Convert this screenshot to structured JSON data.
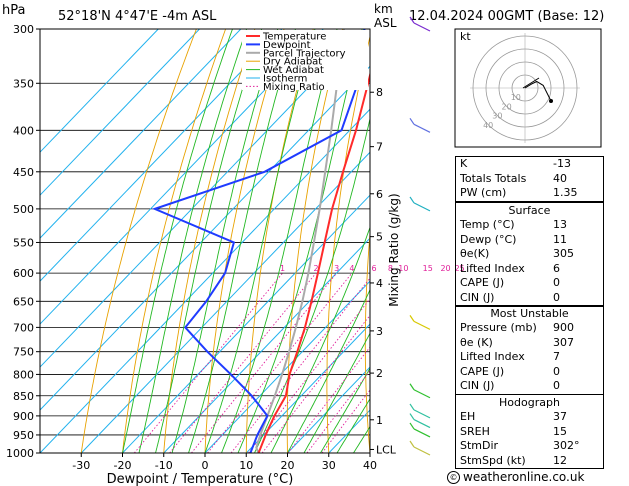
{
  "header": {
    "hpa_label": "hPa",
    "location": "52°18'N  4°47'E  -4m  ASL",
    "km_label": "km",
    "asl_label": "ASL",
    "datetime": "12.04.2024  00GMT  (Base: 12)"
  },
  "colors": {
    "temperature": "#ff2a2a",
    "dewpoint": "#1f3bff",
    "parcel": "#aaaaaa",
    "dry_adiabat": "#e8a200",
    "wet_adiabat": "#22b822",
    "isotherm": "#22b2ee",
    "mixing_ratio": "#e0209a",
    "wind": "#6070e0"
  },
  "chart_data": {
    "type": "line",
    "xlabel": "Dewpoint / Temperature (°C)",
    "ylabel": "Mixing Ratio (g/kg)",
    "xlim": [
      -40,
      40
    ],
    "ylim": [
      1000,
      300
    ],
    "y_scale": "log",
    "x_ticks": [
      "-30",
      "-20",
      "-10",
      "0",
      "10",
      "20",
      "30",
      "40"
    ],
    "x_tick_values": [
      -30,
      -20,
      -10,
      0,
      10,
      20,
      30,
      40
    ],
    "pressure_levels": [
      "300",
      "350",
      "400",
      "450",
      "500",
      "550",
      "600",
      "650",
      "700",
      "750",
      "800",
      "850",
      "900",
      "950",
      "1000"
    ],
    "pressure_values": [
      300,
      350,
      400,
      450,
      500,
      550,
      600,
      650,
      700,
      750,
      800,
      850,
      900,
      950,
      1000
    ],
    "km_ticks": [
      {
        "label": "8",
        "p": 359
      },
      {
        "label": "7",
        "p": 419
      },
      {
        "label": "6",
        "p": 479
      },
      {
        "label": "5",
        "p": 541
      },
      {
        "label": "4",
        "p": 617
      },
      {
        "label": "3",
        "p": 707
      },
      {
        "label": "2",
        "p": 797
      },
      {
        "label": "1",
        "p": 910
      },
      {
        "label": "LCL",
        "p": 990
      }
    ],
    "mixing_ratio_labels": [
      {
        "label": "1",
        "w": 1
      },
      {
        "label": "2",
        "w": 2
      },
      {
        "label": "3",
        "w": 3
      },
      {
        "label": "4",
        "w": 4
      },
      {
        "label": "6",
        "w": 6
      },
      {
        "label": "8",
        "w": 8
      },
      {
        "label": "10",
        "w": 10
      },
      {
        "label": "15",
        "w": 15
      },
      {
        "label": "20",
        "w": 20
      },
      {
        "label": "25",
        "w": 25
      }
    ],
    "legend": [
      "Temperature",
      "Dewpoint",
      "Parcel Trajectory",
      "Dry Adiabat",
      "Wet Adiabat",
      "Isotherm",
      "Mixing Ratio"
    ],
    "legend_placement": "top-center",
    "series": [
      {
        "name": "Temperature",
        "p": [
          1000,
          950,
          900,
          850,
          800,
          750,
          700,
          650,
          600,
          550,
          500,
          450,
          400,
          350,
          300
        ],
        "t": [
          13,
          10.5,
          8.2,
          6.3,
          2.2,
          -1.2,
          -5.0,
          -9.5,
          -14.5,
          -20.0,
          -26.0,
          -32.0,
          -38.5,
          -46.5,
          -56.0
        ]
      },
      {
        "name": "Dewpoint",
        "p": [
          1000,
          950,
          900,
          850,
          800,
          750,
          700,
          650,
          600,
          550,
          500,
          450,
          400,
          350,
          300
        ],
        "t": [
          11,
          8.5,
          6.5,
          -2.0,
          -12.0,
          -23.0,
          -34.0,
          -35.0,
          -37.0,
          -42.0,
          -69.0,
          -51.0,
          -42.0,
          -49.0,
          -60.0
        ]
      },
      {
        "name": "Parcel Trajectory",
        "p": [
          1000,
          985,
          950,
          900,
          850,
          800,
          750,
          700,
          650,
          600,
          550,
          500,
          450,
          400,
          350,
          300
        ],
        "t": [
          13,
          11.2,
          9.2,
          6.5,
          3.6,
          0.4,
          -3.2,
          -7.2,
          -11.7,
          -16.8,
          -22.6,
          -29.0,
          -36.3,
          -44.5,
          -54.0,
          -65.0
        ]
      }
    ]
  },
  "hodograph": {
    "label": "kt",
    "rings": [
      "10",
      "20",
      "30",
      "40"
    ],
    "u": [
      0,
      5,
      9,
      14,
      20
    ],
    "v": [
      0,
      3,
      5,
      2,
      -10
    ]
  },
  "indices": [
    {
      "key": "K",
      "value": "-13"
    },
    {
      "key": "Totals Totals",
      "value": "40"
    },
    {
      "key": "PW (cm)",
      "value": "1.35"
    }
  ],
  "surface": {
    "title": "Surface",
    "rows": [
      {
        "key": "Temp (°C)",
        "value": "13"
      },
      {
        "key": "Dewp (°C)",
        "value": "11"
      },
      {
        "key": "θe(K)",
        "value": "305"
      },
      {
        "key": "Lifted Index",
        "value": "6"
      },
      {
        "key": "CAPE (J)",
        "value": "0"
      },
      {
        "key": "CIN (J)",
        "value": "0"
      }
    ]
  },
  "most_unstable": {
    "title": "Most Unstable",
    "rows": [
      {
        "key": "Pressure (mb)",
        "value": "900"
      },
      {
        "key": "θe (K)",
        "value": "307"
      },
      {
        "key": "Lifted Index",
        "value": "7"
      },
      {
        "key": "CAPE (J)",
        "value": "0"
      },
      {
        "key": "CIN (J)",
        "value": "0"
      }
    ]
  },
  "hodograph_box": {
    "title": "Hodograph",
    "rows": [
      {
        "key": "EH",
        "value": "37"
      },
      {
        "key": "SREH",
        "value": "15"
      },
      {
        "key": "StmDir",
        "value": "302°"
      },
      {
        "key": "StmSpd (kt)",
        "value": "12"
      }
    ]
  },
  "footer": {
    "copyright": "©",
    "site": "weatheronline.co.uk"
  }
}
